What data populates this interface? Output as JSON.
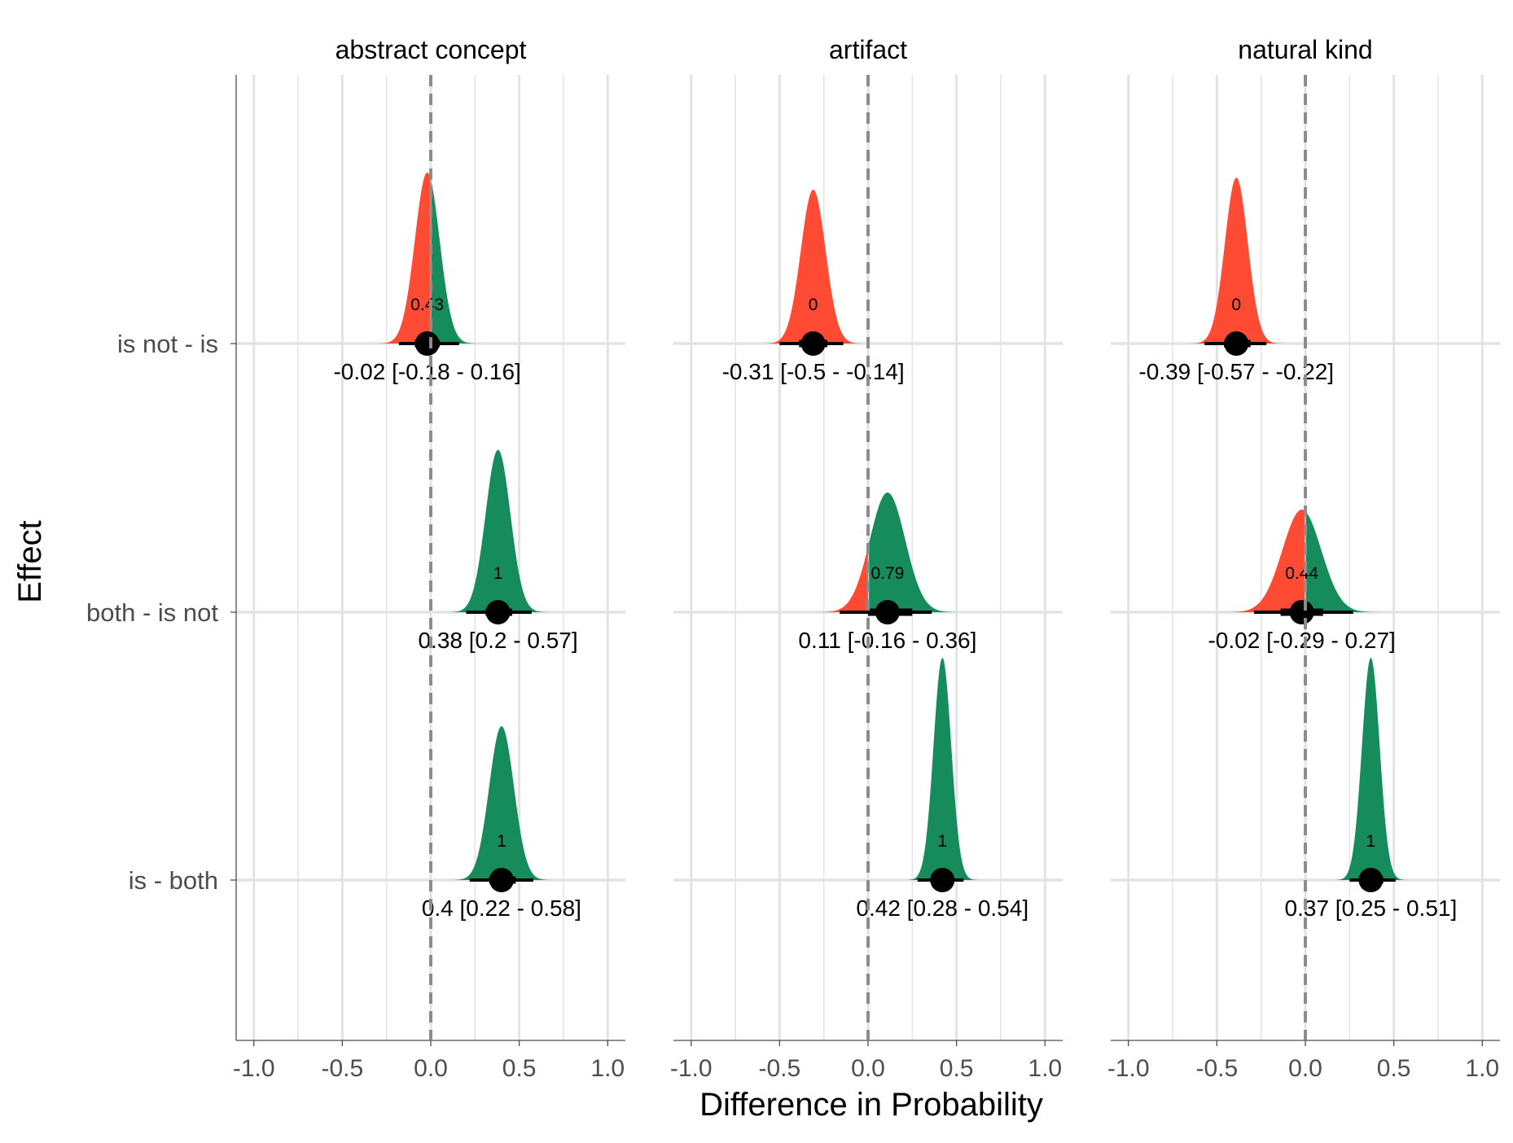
{
  "chart_data": {
    "type": "area",
    "description_type": "faceted half-eye density plot",
    "x_label": "Difference in Probability",
    "y_label": "Effect",
    "xlim": [
      -1.1,
      1.1
    ],
    "x_ticks": [
      -1.0,
      -0.5,
      0.0,
      0.5,
      1.0
    ],
    "x_tick_labels": [
      "-1.0",
      "-0.5",
      "0.0",
      "0.5",
      "1.0"
    ],
    "effects": [
      "is not - is",
      "both - is not",
      "is - both"
    ],
    "reference_line": 0,
    "colors": {
      "negative": "#FF4B33",
      "positive": "#168C5C",
      "point": "#000000",
      "grid": "#E3E3E3",
      "ref_line": "#8C8C8C"
    },
    "panels": [
      {
        "title": "abstract concept",
        "rows": [
          {
            "effect": "is not - is",
            "median": -0.02,
            "lo": -0.18,
            "hi": 0.16,
            "inner_lo": -0.09,
            "inner_hi": 0.05,
            "prob": "0.43",
            "label": "-0.02 [-0.18 - 0.16]",
            "sd": 0.07,
            "h": 1.0
          },
          {
            "effect": "both - is not",
            "median": 0.38,
            "lo": 0.2,
            "hi": 0.57,
            "inner_lo": 0.31,
            "inner_hi": 0.46,
            "prob": "1",
            "label": "0.38 [0.2 - 0.57]",
            "sd": 0.07,
            "h": 0.95
          },
          {
            "effect": "is - both",
            "median": 0.4,
            "lo": 0.22,
            "hi": 0.58,
            "inner_lo": 0.33,
            "inner_hi": 0.48,
            "prob": "1",
            "label": "0.4 [0.22 - 0.58]",
            "sd": 0.07,
            "h": 0.9
          }
        ]
      },
      {
        "title": "artifact",
        "rows": [
          {
            "effect": "is not - is",
            "median": -0.31,
            "lo": -0.5,
            "hi": -0.14,
            "inner_lo": -0.39,
            "inner_hi": -0.23,
            "prob": "0",
            "label": "-0.31 [-0.5 - -0.14]",
            "sd": 0.07,
            "h": 0.9
          },
          {
            "effect": "both - is not",
            "median": 0.11,
            "lo": -0.16,
            "hi": 0.36,
            "inner_lo": 0.0,
            "inner_hi": 0.25,
            "prob": "0.79",
            "label": "0.11 [-0.16 - 0.36]",
            "sd": 0.1,
            "h": 0.7
          },
          {
            "effect": "is - both",
            "median": 0.42,
            "lo": 0.28,
            "hi": 0.54,
            "inner_lo": 0.36,
            "inner_hi": 0.48,
            "prob": "1",
            "label": "0.42 [0.28 - 0.54]",
            "sd": 0.05,
            "h": 1.3
          }
        ]
      },
      {
        "title": "natural kind",
        "rows": [
          {
            "effect": "is not - is",
            "median": -0.39,
            "lo": -0.57,
            "hi": -0.22,
            "inner_lo": -0.46,
            "inner_hi": -0.31,
            "prob": "0",
            "label": "-0.39 [-0.57 - -0.22]",
            "sd": 0.065,
            "h": 0.97
          },
          {
            "effect": "both - is not",
            "median": -0.02,
            "lo": -0.29,
            "hi": 0.27,
            "inner_lo": -0.14,
            "inner_hi": 0.1,
            "prob": "0.44",
            "label": "-0.02 [-0.29 - 0.27]",
            "sd": 0.11,
            "h": 0.6
          },
          {
            "effect": "is - both",
            "median": 0.37,
            "lo": 0.25,
            "hi": 0.51,
            "inner_lo": 0.31,
            "inner_hi": 0.44,
            "prob": "1",
            "label": "0.37 [0.25 - 0.51]",
            "sd": 0.05,
            "h": 1.3
          }
        ]
      }
    ]
  }
}
